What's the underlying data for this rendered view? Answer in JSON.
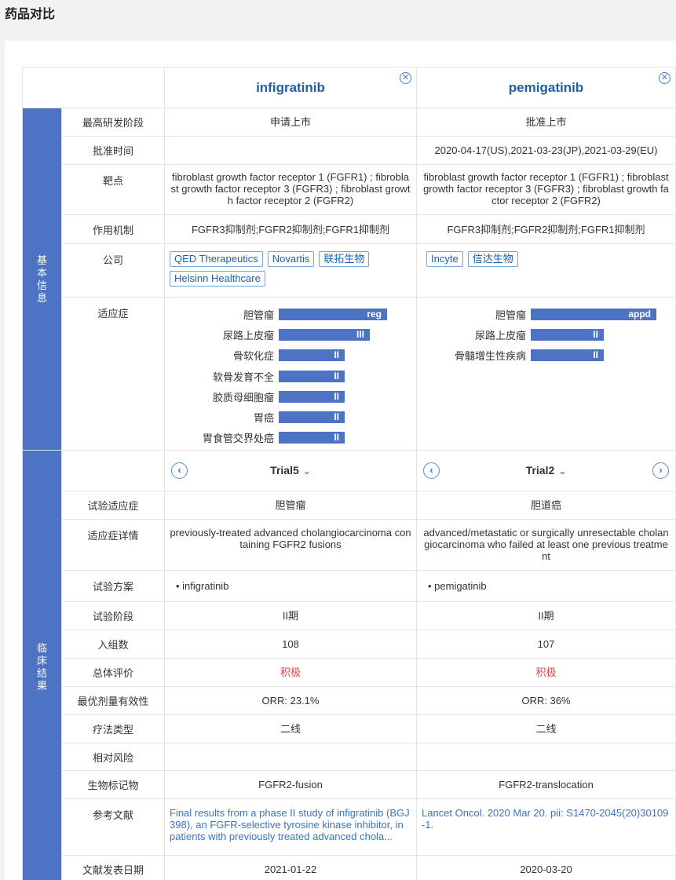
{
  "page_title": "药品对比",
  "drugs": [
    {
      "name": "infigratinib",
      "highest_stage": "申请上市",
      "approval_date": "",
      "target": "fibroblast growth factor receptor 1 (FGFR1) ; fibroblast growth factor receptor 3 (FGFR3) ; fibroblast growth factor receptor 2 (FGFR2)",
      "mechanism": "FGFR3抑制剂;FGFR2抑制剂;FGFR1抑制剂",
      "companies": [
        "QED Therapeutics",
        "Novartis",
        "联拓生物",
        "Helsinn Healthcare"
      ],
      "indications": [
        {
          "name": "胆管瘤",
          "stage": "reg",
          "level": 0.95
        },
        {
          "name": "尿路上皮瘤",
          "stage": "III",
          "level": 0.8
        },
        {
          "name": "骨软化症",
          "stage": "II",
          "level": 0.58
        },
        {
          "name": "软骨发育不全",
          "stage": "II",
          "level": 0.58
        },
        {
          "name": "胶质母细胞瘤",
          "stage": "II",
          "level": 0.58
        },
        {
          "name": "胃癌",
          "stage": "II",
          "level": 0.58
        },
        {
          "name": "胃食管交界处癌",
          "stage": "II",
          "level": 0.58
        }
      ],
      "trial": {
        "title": "Trial5",
        "indication": "胆管瘤",
        "indication_detail": "previously-treated advanced cholangiocarcinoma containing FGFR2 fusions",
        "regimen": "infigratinib",
        "phase": "II期",
        "enrollment": "108",
        "overall": "积极",
        "efficacy": "ORR: 23.1%",
        "therapy_line": "二线",
        "relative_risk": "",
        "biomarker": "FGFR2-fusion",
        "reference": "Final results from a phase II study of infigratinib (BGJ398), an FGFR-selective tyrosine kinase inhibitor, in patients with previously treated advanced chola...",
        "pub_date": "2021-01-22"
      }
    },
    {
      "name": "pemigatinib",
      "highest_stage": "批准上市",
      "approval_date": "2020-04-17(US),2021-03-23(JP),2021-03-29(EU)",
      "target": "fibroblast growth factor receptor 1 (FGFR1) ; fibroblast growth factor receptor 3 (FGFR3) ; fibroblast growth factor receptor 2 (FGFR2)",
      "mechanism": "FGFR3抑制剂;FGFR2抑制剂;FGFR1抑制剂",
      "companies": [
        "Incyte",
        "信达生物"
      ],
      "indications": [
        {
          "name": "胆管瘤",
          "stage": "appd",
          "level": 1.0
        },
        {
          "name": "尿路上皮瘤",
          "stage": "II",
          "level": 0.58
        },
        {
          "name": "骨髓增生性疾病",
          "stage": "II",
          "level": 0.58
        }
      ],
      "trial": {
        "title": "Trial2",
        "indication": "胆道癌",
        "indication_detail": "advanced/metastatic or surgically unresectable cholangiocarcinoma who failed at least one previous treatment",
        "regimen": "pemigatinib",
        "phase": "II期",
        "enrollment": "107",
        "overall": "积极",
        "efficacy": "ORR: 36%",
        "therapy_line": "二线",
        "relative_risk": "",
        "biomarker": "FGFR2-translocation",
        "reference": "Lancet Oncol. 2020 Mar 20. pii: S1470-2045(20)30109-1.",
        "pub_date": "2020-03-20"
      }
    }
  ],
  "labels": {
    "section_basic": "基本信息",
    "section_clinical": "临床结果",
    "highest_stage": "最高研发阶段",
    "approval_date": "批准时间",
    "target": "靶点",
    "mechanism": "作用机制",
    "company": "公司",
    "indication": "适应症",
    "trial_indication": "试验适应症",
    "indication_detail": "适应症详情",
    "regimen": "试验方案",
    "phase": "试验阶段",
    "enrollment": "入组数",
    "overall": "总体评价",
    "efficacy": "最优剂量有效性",
    "therapy_line": "疗法类型",
    "relative_risk": "相对风险",
    "biomarker": "生物标记物",
    "reference": "参考文献",
    "pub_date": "文献发表日期"
  },
  "colors": {
    "accent": "#4d74c4",
    "link": "#3b74c2",
    "positive": "#e2413f"
  }
}
